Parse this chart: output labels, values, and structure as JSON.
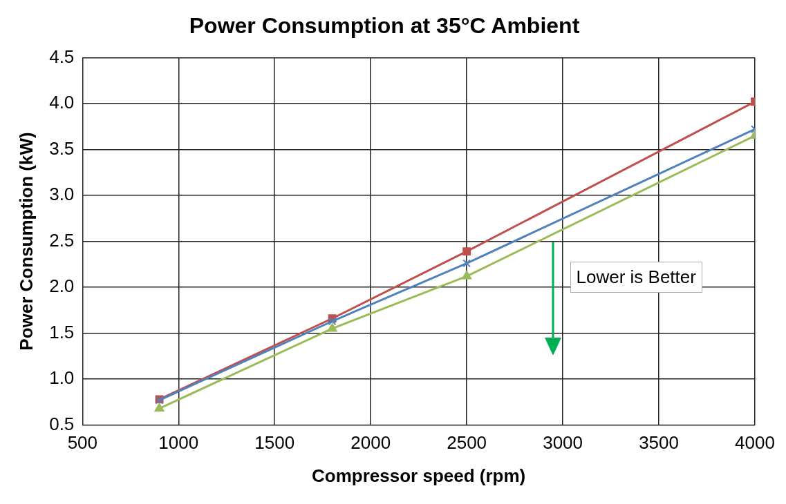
{
  "chart_data": {
    "type": "line",
    "title": "Power Consumption at 35°C Ambient",
    "xlabel": "Compressor speed (rpm)",
    "ylabel": "Power Consumption (kW)",
    "x": [
      900,
      1800,
      2500,
      4000
    ],
    "series": [
      {
        "color": "#c0504d",
        "marker": "square",
        "values": [
          0.78,
          1.66,
          2.39,
          4.02
        ]
      },
      {
        "color": "#4f81bd",
        "marker": "cross",
        "values": [
          0.77,
          1.63,
          2.26,
          3.72
        ]
      },
      {
        "color": "#9bbb59",
        "marker": "triangle",
        "values": [
          0.68,
          1.55,
          2.12,
          3.65
        ]
      }
    ],
    "xlim": [
      500,
      4000
    ],
    "xticks": [
      500,
      1000,
      1500,
      2000,
      2500,
      3000,
      3500,
      4000
    ],
    "ylim": [
      0.5,
      4.5
    ],
    "yticks": [
      0.5,
      {
        "value": 1,
        "label": "1.0"
      },
      1.5,
      {
        "value": 2,
        "label": "2.0"
      },
      2.5,
      {
        "value": 3,
        "label": "3.0"
      },
      3.5,
      {
        "value": 4,
        "label": "4.0"
      },
      4.5
    ],
    "grid": true,
    "legend": false,
    "line_style": "solid",
    "annotations": [
      "Lower is Better"
    ]
  }
}
